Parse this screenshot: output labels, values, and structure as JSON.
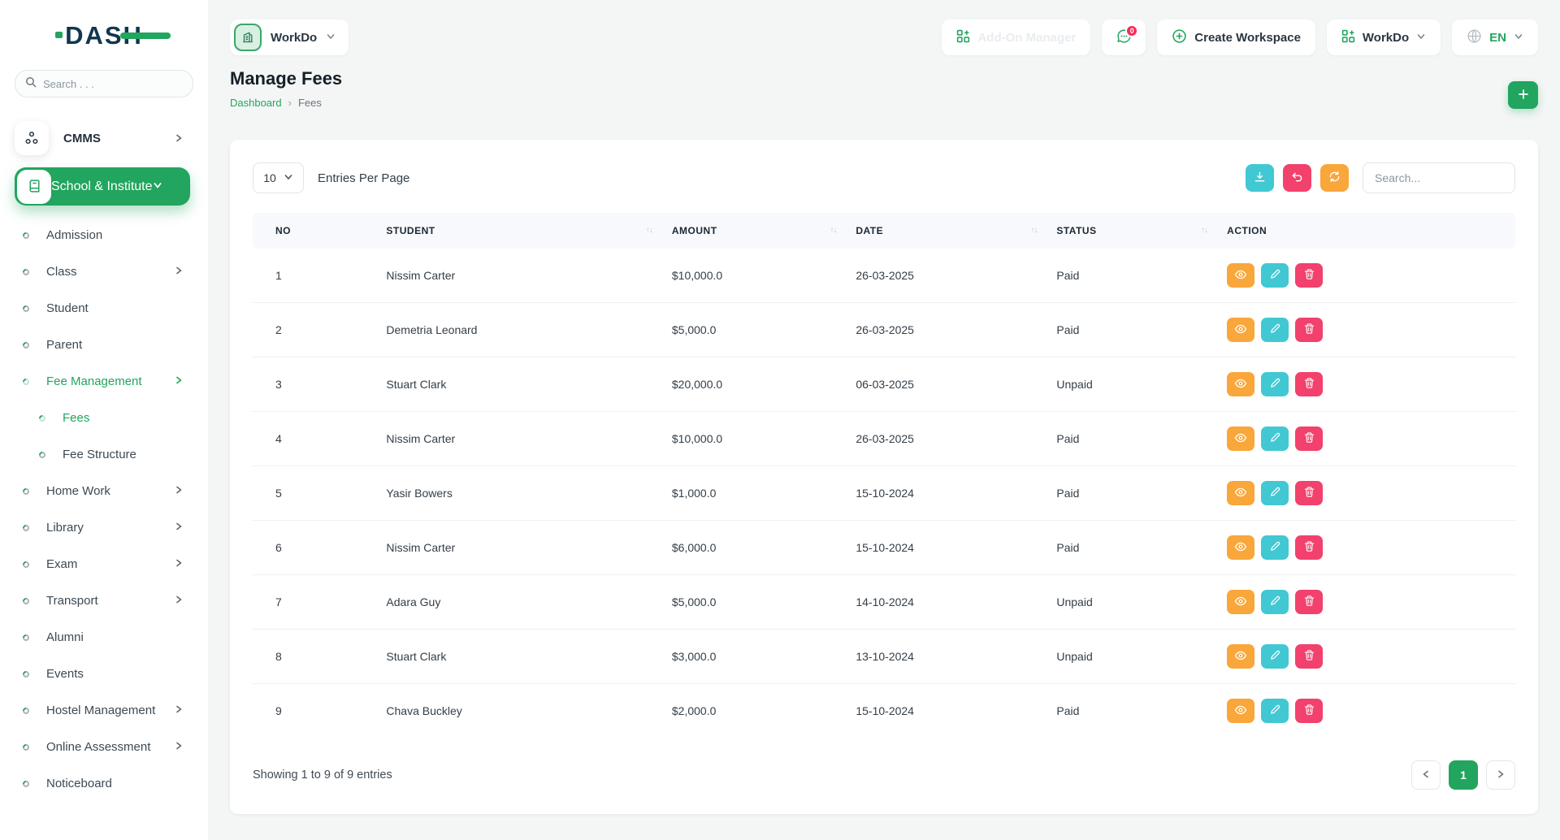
{
  "colors": {
    "primary_green": "#22a55e",
    "badge_red": "#fc275a",
    "teal_button": "#41c8d2",
    "pink_button": "#f1416c",
    "orange_button": "#f9a63b",
    "page_bg": "#f3f6f5"
  },
  "sidebar": {
    "logo_text": "DASH",
    "search_placeholder": "Search . . .",
    "modules": [
      {
        "label": "CMMS",
        "icon": "org-icon",
        "chevron": "right"
      },
      {
        "label": "School & Institute",
        "icon": "book-icon",
        "chevron": "down",
        "active": true
      }
    ],
    "items": [
      {
        "label": "Admission",
        "chevron": false,
        "sub": false,
        "active": false
      },
      {
        "label": "Class",
        "chevron": true,
        "sub": false,
        "active": false
      },
      {
        "label": "Student",
        "chevron": false,
        "sub": false,
        "active": false
      },
      {
        "label": "Parent",
        "chevron": false,
        "sub": false,
        "active": false
      },
      {
        "label": "Fee Management",
        "chevron": true,
        "sub": false,
        "active": true
      },
      {
        "label": "Fees",
        "chevron": false,
        "sub": true,
        "active": true
      },
      {
        "label": "Fee Structure",
        "chevron": false,
        "sub": true,
        "active": false
      },
      {
        "label": "Home Work",
        "chevron": true,
        "sub": false,
        "active": false
      },
      {
        "label": "Library",
        "chevron": true,
        "sub": false,
        "active": false
      },
      {
        "label": "Exam",
        "chevron": true,
        "sub": false,
        "active": false
      },
      {
        "label": "Transport",
        "chevron": true,
        "sub": false,
        "active": false
      },
      {
        "label": "Alumni",
        "chevron": false,
        "sub": false,
        "active": false
      },
      {
        "label": "Events",
        "chevron": false,
        "sub": false,
        "active": false
      },
      {
        "label": "Hostel Management",
        "chevron": true,
        "sub": false,
        "active": false
      },
      {
        "label": "Online Assessment",
        "chevron": true,
        "sub": false,
        "active": false
      },
      {
        "label": "Noticeboard",
        "chevron": false,
        "sub": false,
        "active": false
      }
    ]
  },
  "header": {
    "workspace_pill": "WorkDo",
    "addon_manager_label": "Add-On Manager",
    "chat_badge": "0",
    "create_workspace_label": "Create Workspace",
    "workdo_label": "WorkDo",
    "language_label": "EN"
  },
  "page": {
    "title": "Manage Fees",
    "breadcrumb_home": "Dashboard",
    "breadcrumb_current": "Fees"
  },
  "toolbar": {
    "entries_value": "10",
    "entries_label": "Entries Per Page",
    "search_placeholder": "Search..."
  },
  "table": {
    "columns": [
      {
        "label": "NO",
        "sortable": false
      },
      {
        "label": "STUDENT",
        "sortable": true
      },
      {
        "label": "AMOUNT",
        "sortable": true
      },
      {
        "label": "DATE",
        "sortable": true
      },
      {
        "label": "STATUS",
        "sortable": true
      },
      {
        "label": "ACTION",
        "sortable": false
      }
    ],
    "rows": [
      {
        "no": "1",
        "student": "Nissim Carter",
        "amount": "$10,000.0",
        "date": "26-03-2025",
        "status": "Paid"
      },
      {
        "no": "2",
        "student": "Demetria Leonard",
        "amount": "$5,000.0",
        "date": "26-03-2025",
        "status": "Paid"
      },
      {
        "no": "3",
        "student": "Stuart Clark",
        "amount": "$20,000.0",
        "date": "06-03-2025",
        "status": "Unpaid"
      },
      {
        "no": "4",
        "student": "Nissim Carter",
        "amount": "$10,000.0",
        "date": "26-03-2025",
        "status": "Paid"
      },
      {
        "no": "5",
        "student": "Yasir Bowers",
        "amount": "$1,000.0",
        "date": "15-10-2024",
        "status": "Paid"
      },
      {
        "no": "6",
        "student": "Nissim Carter",
        "amount": "$6,000.0",
        "date": "15-10-2024",
        "status": "Paid"
      },
      {
        "no": "7",
        "student": "Adara Guy",
        "amount": "$5,000.0",
        "date": "14-10-2024",
        "status": "Unpaid"
      },
      {
        "no": "8",
        "student": "Stuart Clark",
        "amount": "$3,000.0",
        "date": "13-10-2024",
        "status": "Unpaid"
      },
      {
        "no": "9",
        "student": "Chava Buckley",
        "amount": "$2,000.0",
        "date": "15-10-2024",
        "status": "Paid"
      }
    ]
  },
  "footer": {
    "showing_text": "Showing 1 to 9 of 9 entries",
    "current_page": "1"
  }
}
